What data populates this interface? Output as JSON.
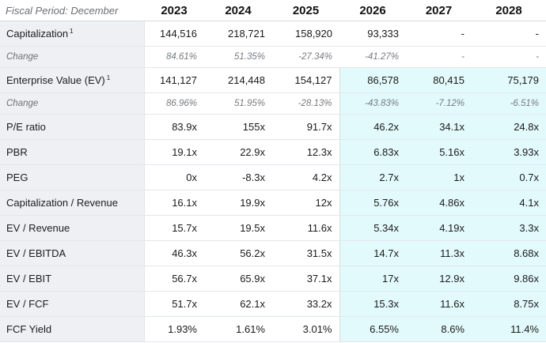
{
  "header": {
    "period_label": "Fiscal Period: December",
    "years": [
      "2023",
      "2024",
      "2025",
      "2026",
      "2027",
      "2028"
    ]
  },
  "rows": [
    {
      "label": "Capitalization",
      "sup": "1",
      "values": [
        "144,516",
        "218,721",
        "158,920",
        "93,333",
        "-",
        "-"
      ]
    },
    {
      "label": "Change",
      "values": [
        "84.61%",
        "51.35%",
        "-27.34%",
        "-41.27%",
        "-",
        "-"
      ]
    },
    {
      "label": "Enterprise Value (EV)",
      "sup": "1",
      "values": [
        "141,127",
        "214,448",
        "154,127",
        "86,578",
        "80,415",
        "75,179"
      ]
    },
    {
      "label": "Change",
      "values": [
        "86.96%",
        "51.95%",
        "-28.13%",
        "-43.83%",
        "-7.12%",
        "-6.51%"
      ]
    },
    {
      "label": "P/E ratio",
      "values": [
        "83.9x",
        "155x",
        "91.7x",
        "46.2x",
        "34.1x",
        "24.8x"
      ]
    },
    {
      "label": "PBR",
      "values": [
        "19.1x",
        "22.9x",
        "12.3x",
        "6.83x",
        "5.16x",
        "3.93x"
      ]
    },
    {
      "label": "PEG",
      "values": [
        "0x",
        "-8.3x",
        "4.2x",
        "2.7x",
        "1x",
        "0.7x"
      ]
    },
    {
      "label": "Capitalization / Revenue",
      "values": [
        "16.1x",
        "19.9x",
        "12x",
        "5.76x",
        "4.86x",
        "4.1x"
      ]
    },
    {
      "label": "EV / Revenue",
      "values": [
        "15.7x",
        "19.5x",
        "11.6x",
        "5.34x",
        "4.19x",
        "3.3x"
      ]
    },
    {
      "label": "EV / EBITDA",
      "values": [
        "46.3x",
        "56.2x",
        "31.5x",
        "14.7x",
        "11.3x",
        "8.68x"
      ]
    },
    {
      "label": "EV / EBIT",
      "values": [
        "56.7x",
        "65.9x",
        "37.1x",
        "17x",
        "12.9x",
        "9.86x"
      ]
    },
    {
      "label": "EV / FCF",
      "values": [
        "51.7x",
        "62.1x",
        "33.2x",
        "15.3x",
        "11.6x",
        "8.75x"
      ]
    },
    {
      "label": "FCF Yield",
      "values": [
        "1.93%",
        "1.61%",
        "3.01%",
        "6.55%",
        "8.6%",
        "11.4%"
      ]
    }
  ],
  "colors": {
    "label_bg": "#eef0f3",
    "estimate_bg": "#e3fafc"
  }
}
